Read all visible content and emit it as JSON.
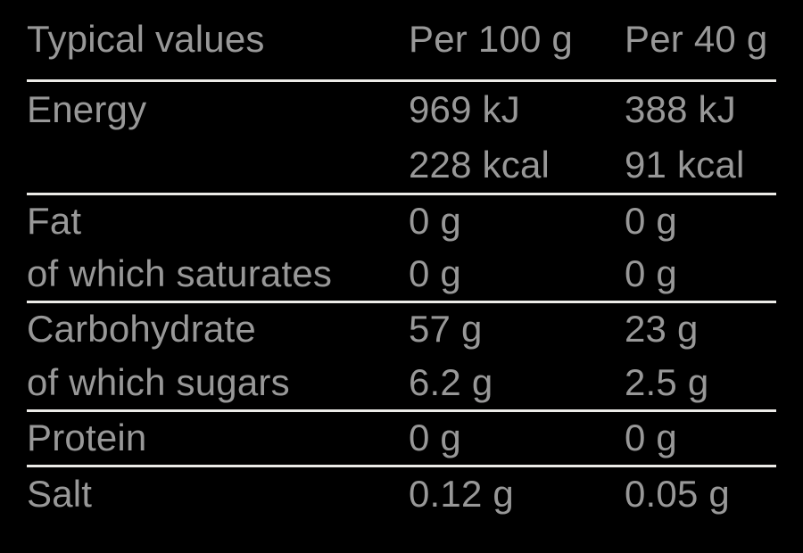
{
  "colors": {
    "background": "#000000",
    "text": "#989898",
    "divider": "#ECEBE7"
  },
  "table": {
    "header": {
      "label": "Typical values",
      "per_100g": "Per 100 g",
      "per_40g": "Per 40 g"
    },
    "rows": [
      {
        "label": "Energy",
        "per_100g": [
          "969 kJ",
          "228 kcal"
        ],
        "per_40g": [
          "388 kJ",
          "91 kcal"
        ]
      },
      {
        "label": "Fat",
        "per_100g": [
          "0 g"
        ],
        "per_40g": [
          "0 g"
        ]
      },
      {
        "label": "of which saturates",
        "per_100g": [
          "0 g"
        ],
        "per_40g": [
          "0 g"
        ]
      },
      {
        "label": "Carbohydrate",
        "per_100g": [
          "57 g"
        ],
        "per_40g": [
          "23 g"
        ]
      },
      {
        "label": "of which sugars",
        "per_100g": [
          "6.2 g"
        ],
        "per_40g": [
          "2.5 g"
        ]
      },
      {
        "label": "Protein",
        "per_100g": [
          "0 g"
        ],
        "per_40g": [
          "0 g"
        ]
      },
      {
        "label": "Salt",
        "per_100g": [
          "0.12 g"
        ],
        "per_40g": [
          "0.05 g"
        ]
      }
    ]
  }
}
